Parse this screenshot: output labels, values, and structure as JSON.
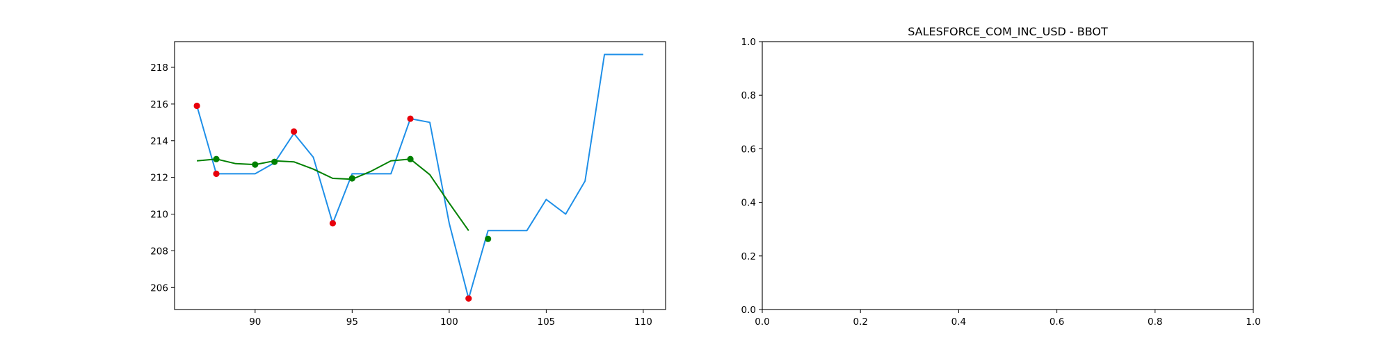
{
  "chart_data": [
    {
      "type": "line",
      "title": "",
      "xlabel": "",
      "ylabel": "",
      "xlim": [
        85.85,
        111.15
      ],
      "ylim": [
        204.8,
        219.4
      ],
      "xticks": [
        90,
        95,
        100,
        105,
        110
      ],
      "yticks": [
        206,
        208,
        210,
        212,
        214,
        216,
        218
      ],
      "grid": false,
      "colors": {
        "price": "#1e8fe8",
        "average": "#008000",
        "sell_marker": "#e8000b",
        "buy_marker": "#008000"
      },
      "series": [
        {
          "x": [
            87,
            88,
            89,
            90,
            91,
            92,
            93,
            94,
            95,
            96,
            97,
            98,
            99,
            100,
            101,
            102,
            103,
            104,
            105,
            106,
            107,
            108,
            109,
            110
          ],
          "values": [
            215.9,
            212.2,
            212.2,
            212.2,
            212.8,
            214.4,
            213.1,
            209.5,
            212.2,
            212.2,
            212.2,
            215.2,
            215.0,
            209.5,
            205.4,
            209.1,
            209.1,
            209.1,
            210.8,
            210.0,
            211.8,
            218.7,
            218.7,
            218.7
          ]
        },
        {
          "x": [
            87,
            88,
            89,
            90,
            91,
            92,
            93,
            94,
            95,
            96,
            97,
            98,
            99,
            100,
            101
          ],
          "values": [
            212.9,
            213.0,
            212.75,
            212.7,
            212.9,
            212.85,
            212.45,
            211.95,
            211.9,
            212.35,
            212.9,
            213.0,
            212.15,
            210.6,
            209.1
          ]
        },
        {
          "x": [
            87,
            88,
            92,
            94,
            98,
            101
          ],
          "values": [
            215.9,
            212.2,
            214.5,
            209.5,
            215.2,
            205.4
          ]
        },
        {
          "x": [
            88,
            90,
            91,
            95,
            98,
            102
          ],
          "values": [
            213.0,
            212.7,
            212.85,
            211.95,
            213.0,
            208.65
          ]
        }
      ]
    },
    {
      "type": "line",
      "title": "SALESFORCE_COM_INC_USD - BBOT",
      "xlabel": "",
      "ylabel": "",
      "xlim": [
        0,
        1
      ],
      "ylim": [
        0,
        1
      ],
      "xticks": [
        0.0,
        0.2,
        0.4,
        0.6,
        0.8,
        1.0
      ],
      "yticks": [
        0.0,
        0.2,
        0.4,
        0.6,
        0.8,
        1.0
      ],
      "grid": false,
      "series": []
    }
  ]
}
